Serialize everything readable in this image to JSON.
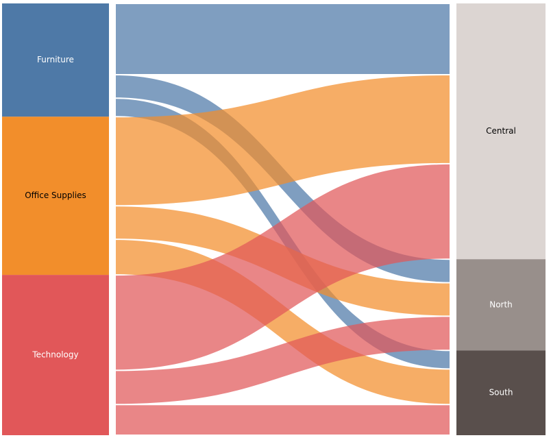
{
  "chart_data": {
    "type": "sankey",
    "title": "",
    "units": "",
    "sources": [
      {
        "name": "Furniture",
        "color": "#4e79a7",
        "label_color": "#ffffff"
      },
      {
        "name": "Office Supplies",
        "color": "#f28e2b",
        "label_color": "#000000"
      },
      {
        "name": "Technology",
        "color": "#e15759",
        "label_color": "#ffffff"
      }
    ],
    "targets": [
      {
        "name": "Central",
        "color": "#dcd5d2",
        "label_color": "#000000"
      },
      {
        "name": "North",
        "color": "#988f8b",
        "label_color": "#ffffff"
      },
      {
        "name": "South",
        "color": "#594f4c",
        "label_color": "#ffffff"
      }
    ],
    "flows": [
      {
        "source": "Furniture",
        "target": "Central",
        "value": 100
      },
      {
        "source": "Furniture",
        "target": "North",
        "value": 33
      },
      {
        "source": "Furniture",
        "target": "South",
        "value": 26
      },
      {
        "source": "Office Supplies",
        "target": "Central",
        "value": 125
      },
      {
        "source": "Office Supplies",
        "target": "North",
        "value": 47
      },
      {
        "source": "Office Supplies",
        "target": "South",
        "value": 50
      },
      {
        "source": "Technology",
        "target": "Central",
        "value": 134
      },
      {
        "source": "Technology",
        "target": "North",
        "value": 48
      },
      {
        "source": "Technology",
        "target": "South",
        "value": 43
      }
    ],
    "legend": "none",
    "grid": false
  }
}
